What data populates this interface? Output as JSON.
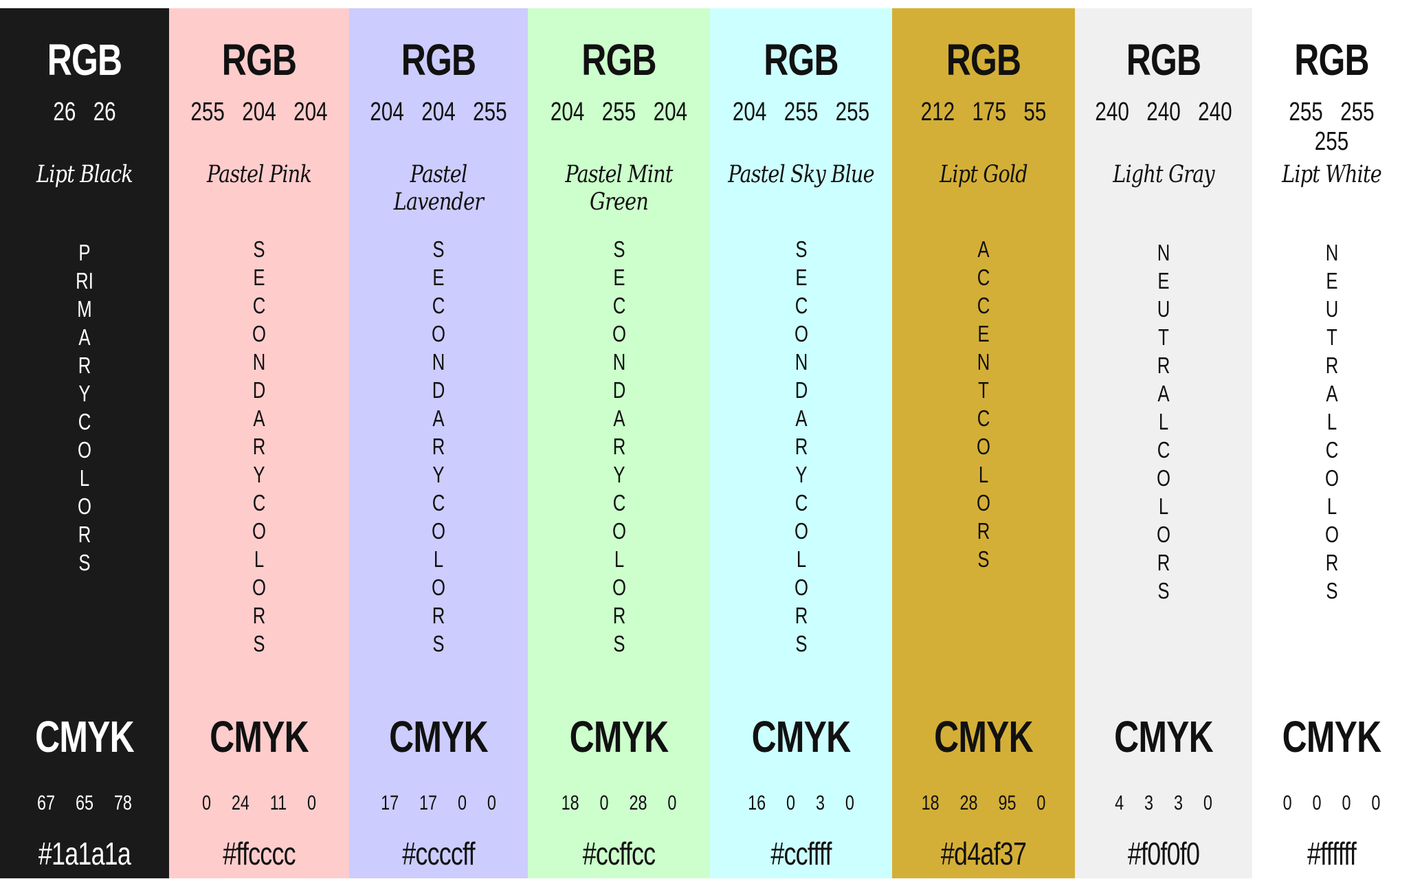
{
  "swatches": [
    {
      "name": "Lipt Black",
      "category": "PRIMARY COLORS",
      "rgb_title": "RGB",
      "rgb": "26 26",
      "cmyk_title": "CMYK",
      "cmyk": "67 65 78",
      "hex": "#1a1a1a",
      "color": "#1a1a1a",
      "text_color": "#ffffff"
    },
    {
      "name": "Pastel Pink",
      "category": "SECONDARY COLORS",
      "rgb_title": "RGB",
      "rgb": "255 204 204",
      "cmyk_title": "CMYK",
      "cmyk": "0 24 11 0",
      "hex": "#ffcccc",
      "color": "#ffcccc",
      "text_color": "#111111"
    },
    {
      "name": "Pastel Lavender",
      "category": "SECONDARY COLORS",
      "rgb_title": "RGB",
      "rgb": "204 204 255",
      "cmyk_title": "CMYK",
      "cmyk": "17 17 0 0",
      "hex": "#ccccff",
      "color": "#ccccff",
      "text_color": "#111111"
    },
    {
      "name": "Pastel Mint Green",
      "category": "SECONDARY COLORS",
      "rgb_title": "RGB",
      "rgb": "204 255 204",
      "cmyk_title": "CMYK",
      "cmyk": "18 0 28 0",
      "hex": "#ccffcc",
      "color": "#ccffcc",
      "text_color": "#111111"
    },
    {
      "name": "Pastel Sky Blue",
      "category": "SECONDARY COLORS",
      "rgb_title": "RGB",
      "rgb": "204 255 255",
      "cmyk_title": "CMYK",
      "cmyk": "16 0 3 0",
      "hex": "#ccffff",
      "color": "#ccffff",
      "text_color": "#111111"
    },
    {
      "name": "Lipt Gold",
      "category": "ACCENT COLORS",
      "rgb_title": "RGB",
      "rgb": "212 175 55",
      "cmyk_title": "CMYK",
      "cmyk": "18 28 95 0",
      "hex": "#d4af37",
      "color": "#d4af37",
      "text_color": "#111111"
    },
    {
      "name": "Light Gray",
      "category": "NEUTRAL COLORS",
      "rgb_title": "RGB",
      "rgb": "240 240 240",
      "cmyk_title": "CMYK",
      "cmyk": "4 3 3 0",
      "hex": "#f0f0f0",
      "color": "#f0f0f0",
      "text_color": "#111111"
    },
    {
      "name": "Lipt White",
      "category": "NEUTRAL COLORS",
      "rgb_title": "RGB",
      "rgb": "255 255 255",
      "cmyk_title": "CMYK",
      "cmyk": "0 0 0 0",
      "hex": "#ffffff",
      "color": "#ffffff",
      "text_color": "#111111"
    }
  ]
}
